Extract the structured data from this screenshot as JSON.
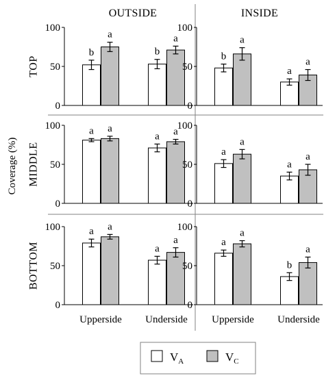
{
  "chart_data": {
    "type": "bar",
    "ylabel": "Coverage (%)",
    "ylim": [
      0,
      100
    ],
    "yticks": [
      0,
      50,
      100
    ],
    "columns": [
      "OUTSIDE",
      "INSIDE"
    ],
    "rows": [
      "TOP",
      "MIDDLE",
      "BOTTOM"
    ],
    "categories": [
      "Upperside",
      "Underside"
    ],
    "legend": {
      "placement": "bottom-center",
      "entries": [
        {
          "symbol": "V",
          "subscript": "A",
          "color": "#ffffff"
        },
        {
          "symbol": "V",
          "subscript": "C",
          "color": "#c0c0c0"
        }
      ]
    },
    "panels": [
      {
        "row": "TOP",
        "column": "OUTSIDE",
        "values": {
          "VA": [
            52,
            53
          ],
          "VC": [
            75,
            71
          ]
        },
        "errors": {
          "VA": [
            6,
            6
          ],
          "VC": [
            6,
            5
          ]
        },
        "letters": {
          "VA": [
            "b",
            "b"
          ],
          "VC": [
            "a",
            "a"
          ]
        }
      },
      {
        "row": "TOP",
        "column": "INSIDE",
        "values": {
          "VA": [
            48,
            30
          ],
          "VC": [
            66,
            39
          ]
        },
        "errors": {
          "VA": [
            5,
            4
          ],
          "VC": [
            8,
            7
          ]
        },
        "letters": {
          "VA": [
            "b",
            "a"
          ],
          "VC": [
            "a",
            "a"
          ]
        }
      },
      {
        "row": "MIDDLE",
        "column": "OUTSIDE",
        "values": {
          "VA": [
            81,
            71
          ],
          "VC": [
            83,
            79
          ]
        },
        "errors": {
          "VA": [
            2,
            5
          ],
          "VC": [
            3,
            3
          ]
        },
        "letters": {
          "VA": [
            "a",
            "a"
          ],
          "VC": [
            "a",
            "a"
          ]
        }
      },
      {
        "row": "MIDDLE",
        "column": "INSIDE",
        "values": {
          "VA": [
            51,
            35
          ],
          "VC": [
            63,
            43
          ]
        },
        "errors": {
          "VA": [
            5,
            5
          ],
          "VC": [
            6,
            7
          ]
        },
        "letters": {
          "VA": [
            "a",
            "a"
          ],
          "VC": [
            "a",
            "a"
          ]
        }
      },
      {
        "row": "BOTTOM",
        "column": "OUTSIDE",
        "values": {
          "VA": [
            79,
            57
          ],
          "VC": [
            87,
            67
          ]
        },
        "errors": {
          "VA": [
            5,
            5
          ],
          "VC": [
            3,
            6
          ]
        },
        "letters": {
          "VA": [
            "a",
            "a"
          ],
          "VC": [
            "a",
            "a"
          ]
        }
      },
      {
        "row": "BOTTOM",
        "column": "INSIDE",
        "values": {
          "VA": [
            66,
            36
          ],
          "VC": [
            78,
            54
          ]
        },
        "errors": {
          "VA": [
            4,
            5
          ],
          "VC": [
            4,
            7
          ]
        },
        "letters": {
          "VA": [
            "a",
            "b"
          ],
          "VC": [
            "a",
            "a"
          ]
        }
      }
    ]
  }
}
